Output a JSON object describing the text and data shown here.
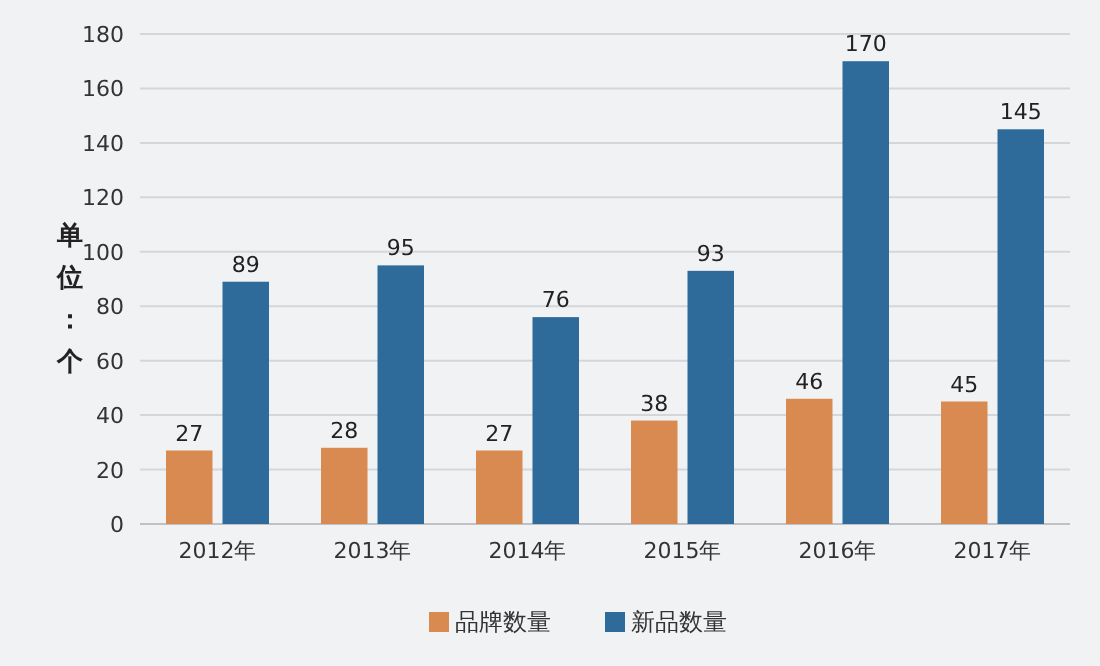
{
  "chart_data": {
    "type": "bar",
    "categories": [
      "2012年",
      "2013年",
      "2014年",
      "2015年",
      "2016年",
      "2017年"
    ],
    "series": [
      {
        "name": "品牌数量",
        "color": "#d98a50",
        "values": [
          27,
          28,
          27,
          38,
          46,
          45
        ]
      },
      {
        "name": "新品数量",
        "color": "#2f6b9a",
        "values": [
          89,
          95,
          76,
          93,
          170,
          145
        ]
      }
    ],
    "ylabel": "单位：个",
    "ylim": [
      0,
      180
    ],
    "yticks": [
      0,
      20,
      40,
      60,
      80,
      100,
      120,
      140,
      160,
      180
    ],
    "grid": "y",
    "data_labels": true,
    "legend": "bottom"
  }
}
